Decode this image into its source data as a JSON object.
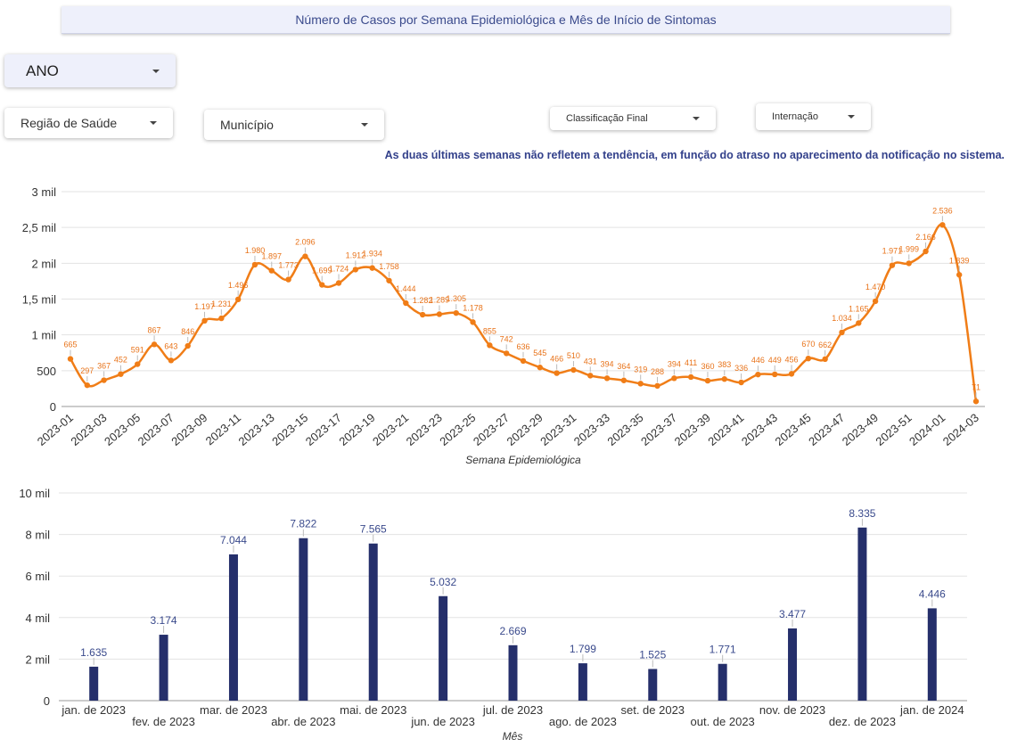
{
  "header": {
    "title": "Número de Casos por Semana Epidemiológica e Mês de Início de Sintomas"
  },
  "filters": {
    "ano": "ANO",
    "regiao": "Região de Saúde",
    "municipio": "Município",
    "classificacao": "Classificação Final",
    "internacao": "Internação"
  },
  "note": "As duas últimas semanas não refletem a tendência, em função do atraso no aparecimento da notificação no sistema.",
  "chart_data": [
    {
      "type": "line",
      "xlabel": "Semana Epidemiológica",
      "ylabel": "",
      "ylim": [
        0,
        3000
      ],
      "yticks": [
        {
          "v": 0,
          "t": "0"
        },
        {
          "v": 500,
          "t": "500"
        },
        {
          "v": 1000,
          "t": "1 mil"
        },
        {
          "v": 1500,
          "t": "1,5 mil"
        },
        {
          "v": 2000,
          "t": "2 mil"
        },
        {
          "v": 2500,
          "t": "2,5 mil"
        },
        {
          "v": 3000,
          "t": "3 mil"
        }
      ],
      "color": "#f07d17",
      "x": [
        "2023-01",
        "2023-02",
        "2023-03",
        "2023-04",
        "2023-05",
        "2023-06",
        "2023-07",
        "2023-08",
        "2023-09",
        "2023-10",
        "2023-11",
        "2023-12",
        "2023-13",
        "2023-14",
        "2023-15",
        "2023-16",
        "2023-17",
        "2023-18",
        "2023-19",
        "2023-20",
        "2023-21",
        "2023-22",
        "2023-23",
        "2023-24",
        "2023-25",
        "2023-26",
        "2023-27",
        "2023-28",
        "2023-29",
        "2023-30",
        "2023-31",
        "2023-32",
        "2023-33",
        "2023-34",
        "2023-35",
        "2023-36",
        "2023-37",
        "2023-38",
        "2023-39",
        "2023-40",
        "2023-41",
        "2023-42",
        "2023-43",
        "2023-44",
        "2023-45",
        "2023-46",
        "2023-47",
        "2023-48",
        "2023-49",
        "2023-50",
        "2023-51",
        "2023-52",
        "2024-01",
        "2024-02",
        "2024-03"
      ],
      "xtick_labels": [
        "2023-01",
        "2023-03",
        "2023-05",
        "2023-07",
        "2023-09",
        "2023-11",
        "2023-13",
        "2023-15",
        "2023-17",
        "2023-19",
        "2023-21",
        "2023-23",
        "2023-25",
        "2023-27",
        "2023-29",
        "2023-31",
        "2023-33",
        "2023-35",
        "2023-37",
        "2023-39",
        "2023-41",
        "2023-43",
        "2023-45",
        "2023-47",
        "2023-49",
        "2023-51",
        "2024-01",
        "2024-03"
      ],
      "values": [
        665,
        297,
        367,
        452,
        591,
        867,
        643,
        846,
        1197,
        1231,
        1496,
        1980,
        1897,
        1773,
        2096,
        1699,
        1724,
        1912,
        1934,
        1758,
        1444,
        1282,
        1289,
        1305,
        1178,
        855,
        742,
        636,
        545,
        466,
        510,
        431,
        394,
        364,
        319,
        288,
        394,
        411,
        360,
        383,
        336,
        446,
        449,
        456,
        670,
        662,
        1034,
        1165,
        1470,
        1971,
        1999,
        2166,
        2536,
        1839,
        71
      ],
      "labels": [
        "665",
        "297",
        "367",
        "452",
        "591",
        "867",
        "643",
        "846",
        "1.197",
        "1.231",
        "1.496",
        "1.980",
        "1.897",
        "1.773",
        "2.096",
        "1.699",
        "1.724",
        "1.912",
        "1.934",
        "1.758",
        "1.444",
        "1.282",
        "1.289",
        "1.305",
        "1.178",
        "855",
        "742",
        "636",
        "545",
        "466",
        "510",
        "431",
        "394",
        "364",
        "319",
        "288",
        "394",
        "411",
        "360",
        "383",
        "336",
        "446",
        "449",
        "456",
        "670",
        "662",
        "1.034",
        "1.165",
        "1.470",
        "1.971",
        "1.999",
        "2.166",
        "2.536",
        "1.839",
        "71"
      ]
    },
    {
      "type": "bar",
      "xlabel": "Mês",
      "ylabel": "",
      "ylim": [
        0,
        10000
      ],
      "yticks": [
        {
          "v": 0,
          "t": "0"
        },
        {
          "v": 2000,
          "t": "2 mil"
        },
        {
          "v": 4000,
          "t": "4 mil"
        },
        {
          "v": 6000,
          "t": "6 mil"
        },
        {
          "v": 8000,
          "t": "8 mil"
        },
        {
          "v": 10000,
          "t": "10 mil"
        }
      ],
      "color": "#252f6b",
      "categories": [
        "jan. de 2023",
        "fev. de 2023",
        "mar. de 2023",
        "abr. de 2023",
        "mai. de 2023",
        "jun. de 2023",
        "jul. de 2023",
        "ago. de 2023",
        "set. de 2023",
        "out. de 2023",
        "nov. de 2023",
        "dez. de 2023",
        "jan. de 2024"
      ],
      "values": [
        1635,
        3174,
        7044,
        7822,
        7565,
        5032,
        2669,
        1799,
        1525,
        1771,
        3477,
        8335,
        4446
      ],
      "labels": [
        "1.635",
        "3.174",
        "7.044",
        "7.822",
        "7.565",
        "5.032",
        "2.669",
        "1.799",
        "1.525",
        "1.771",
        "3.477",
        "8.335",
        "4.446"
      ]
    }
  ]
}
